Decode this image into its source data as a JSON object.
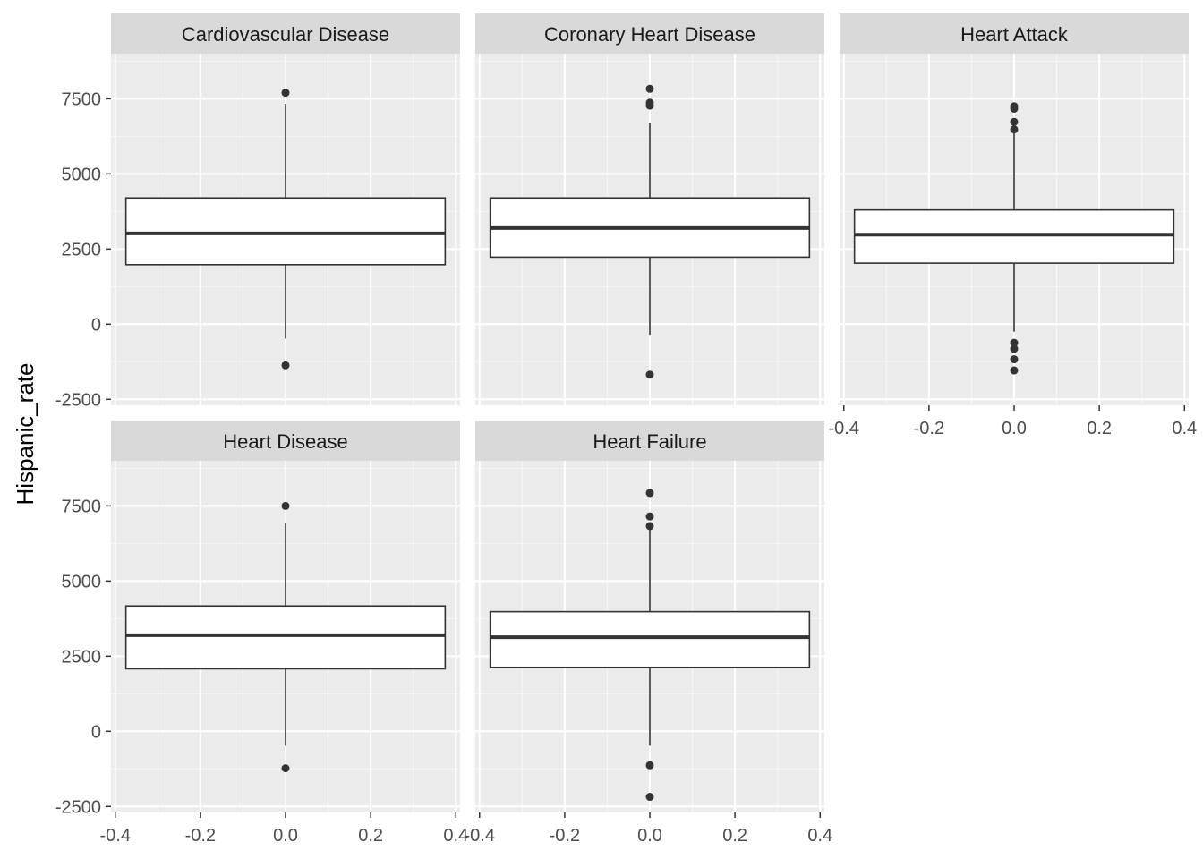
{
  "chart_data": {
    "type": "boxplot",
    "facet_layout": "wrap",
    "ylabel": "Hispanic_rate",
    "xlabel": "",
    "xlim": [
      -0.4,
      0.4
    ],
    "ylim": [
      -2500,
      8000
    ],
    "x_ticks": [
      "-0.4",
      "-0.2",
      "0.0",
      "0.2",
      "0.4"
    ],
    "y_ticks": [
      "-2500",
      "0",
      "2500",
      "5000",
      "7500"
    ],
    "grid": true,
    "colors": {
      "panel_background": "#ebebeb",
      "strip_background": "#d9d9d9",
      "grid_line": "#ffffff",
      "box_fill": "#ffffff",
      "box_line": "#333333"
    },
    "panels": [
      {
        "title": "Cardiovascular Disease",
        "box_x_range": [
          -0.375,
          0.375
        ],
        "q1": 1980,
        "median": 3020,
        "q3": 4200,
        "whisker_low": -480,
        "whisker_high": 7330,
        "outliers": [
          7700,
          -1370
        ]
      },
      {
        "title": "Coronary Heart Disease",
        "box_x_range": [
          -0.375,
          0.375
        ],
        "q1": 2230,
        "median": 3200,
        "q3": 4200,
        "whisker_low": -350,
        "whisker_high": 6700,
        "outliers": [
          7830,
          7370,
          7270,
          -1680
        ]
      },
      {
        "title": "Heart Attack",
        "box_x_range": [
          -0.375,
          0.375
        ],
        "q1": 2030,
        "median": 2980,
        "q3": 3800,
        "whisker_low": -250,
        "whisker_high": 6430,
        "outliers": [
          7250,
          7170,
          6730,
          6480,
          -620,
          -820,
          -1170,
          -1540
        ]
      },
      {
        "title": "Heart Disease",
        "box_x_range": [
          -0.375,
          0.375
        ],
        "q1": 2080,
        "median": 3200,
        "q3": 4170,
        "whisker_low": -480,
        "whisker_high": 6930,
        "outliers": [
          7500,
          -1230
        ]
      },
      {
        "title": "Heart Failure",
        "box_x_range": [
          -0.375,
          0.375
        ],
        "q1": 2130,
        "median": 3130,
        "q3": 3980,
        "whisker_low": -480,
        "whisker_high": 6800,
        "outliers": [
          7930,
          7150,
          6830,
          -1130,
          -2180
        ]
      }
    ]
  }
}
